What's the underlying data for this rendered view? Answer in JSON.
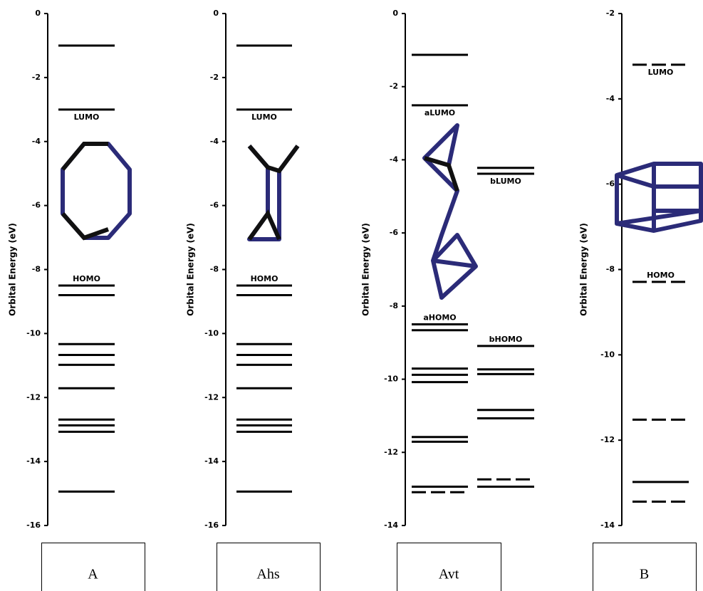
{
  "chart_data": [
    {
      "type": "levels",
      "ylabel": "Orbital Energy (eV)",
      "label": "A",
      "ylim": [
        0,
        -16
      ],
      "yticks": [
        0,
        -2,
        -4,
        -6,
        -8,
        -10,
        -12,
        -14,
        -16
      ],
      "series": [
        {
          "color": "#000000",
          "values": [
            -1.0,
            -3.0,
            -8.5,
            -8.8,
            -10.33,
            -10.67,
            -10.98,
            -11.71,
            -12.69,
            -12.87,
            -13.07,
            -14.94
          ],
          "level_labels": [
            null,
            "LUMO",
            "HOMO",
            null,
            null,
            null,
            null,
            null,
            null,
            null,
            null,
            null
          ]
        }
      ]
    },
    {
      "type": "levels",
      "ylabel": "Orbital Energy (eV)",
      "label": "Ahs",
      "ylim": [
        0,
        -16
      ],
      "yticks": [
        0,
        -2,
        -4,
        -6,
        -8,
        -10,
        -12,
        -14,
        -16
      ],
      "series": [
        {
          "color": "#000000",
          "values": [
            -1.0,
            -3.0,
            -8.5,
            -8.8,
            -10.33,
            -10.67,
            -10.98,
            -11.71,
            -12.69,
            -12.87,
            -13.07,
            -14.94
          ],
          "level_labels": [
            null,
            "LUMO",
            "HOMO",
            null,
            null,
            null,
            null,
            null,
            null,
            null,
            null,
            null
          ]
        }
      ]
    },
    {
      "type": "levels",
      "ylabel": "Orbital Energy (eV)",
      "label": "Avt",
      "ylim": [
        0,
        -14
      ],
      "yticks": [
        0,
        -2,
        -4,
        -6,
        -8,
        -10,
        -12,
        -14
      ],
      "series": [
        {
          "color": "#000000",
          "values": [
            -1.13,
            -2.51,
            -8.5,
            -8.66,
            -9.71,
            -9.88,
            -10.08,
            -11.58,
            -11.71,
            -12.94,
            -13.09
          ],
          "level_labels": [
            null,
            "aLUMO",
            "aHOMO",
            null,
            null,
            null,
            null,
            null,
            null,
            null,
            null
          ],
          "dashed": [
            false,
            false,
            false,
            false,
            false,
            false,
            false,
            false,
            false,
            false,
            true
          ]
        },
        {
          "color": "#000000",
          "values": [
            -4.22,
            -4.38,
            -9.09,
            -9.73,
            -9.86,
            -10.84,
            -11.07,
            -12.74,
            -12.94
          ],
          "level_labels": [
            null,
            "bLUMO",
            "bHOMO",
            null,
            null,
            null,
            null,
            null,
            null
          ],
          "dashed": [
            false,
            false,
            false,
            false,
            false,
            false,
            false,
            true,
            false
          ]
        }
      ]
    },
    {
      "type": "levels",
      "ylabel": "Orbital Energy (eV)",
      "label": "B",
      "ylim": [
        -2,
        -14
      ],
      "yticks": [
        -2,
        -4,
        -6,
        -8,
        -10,
        -12,
        -14
      ],
      "series": [
        {
          "color": "#000000",
          "values": [
            -3.2,
            -8.29,
            -11.52,
            -12.98,
            -13.44
          ],
          "level_labels": [
            "LUMO",
            "HOMO",
            null,
            null,
            null
          ],
          "dashed": [
            true,
            true,
            true,
            false,
            true
          ]
        }
      ]
    }
  ]
}
